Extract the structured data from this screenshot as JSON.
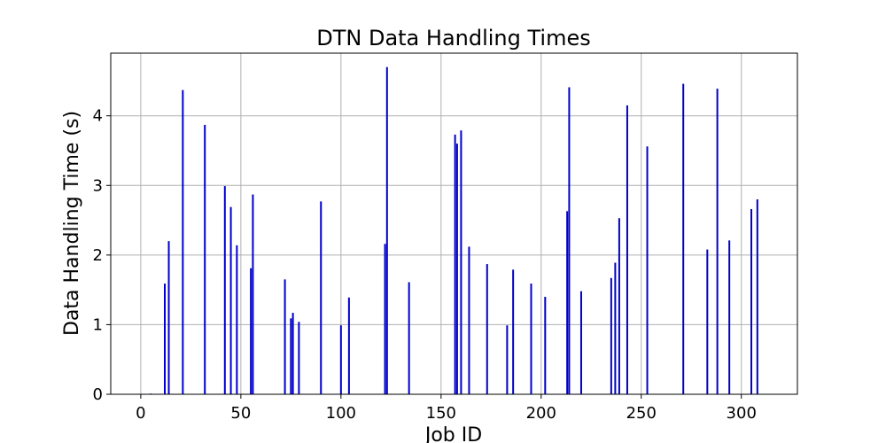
{
  "chart_data": {
    "type": "bar",
    "title": "DTN Data Handling Times",
    "xlabel": "Job ID",
    "ylabel": "Data Handling Time (s)",
    "xlim": [
      -15,
      328
    ],
    "ylim": [
      0,
      4.9
    ],
    "xticks": [
      0,
      50,
      100,
      150,
      200,
      250,
      300
    ],
    "yticks": [
      0,
      1,
      2,
      3,
      4
    ],
    "grid": true,
    "bar_color": "#0000cc",
    "x": [
      5,
      12,
      14,
      21,
      32,
      42,
      45,
      48,
      55,
      56,
      72,
      75,
      76,
      79,
      90,
      100,
      104,
      122,
      123,
      134,
      157,
      158,
      160,
      164,
      173,
      183,
      186,
      195,
      202,
      213,
      214,
      220,
      235,
      237,
      239,
      243,
      253,
      271,
      283,
      288,
      294,
      305,
      308
    ],
    "values": [
      0.01,
      1.59,
      2.2,
      4.37,
      3.87,
      2.99,
      2.69,
      2.14,
      1.81,
      2.87,
      1.65,
      1.09,
      1.17,
      1.04,
      2.77,
      0.99,
      1.39,
      2.16,
      4.7,
      1.61,
      3.73,
      3.6,
      3.79,
      2.12,
      1.87,
      0.99,
      1.79,
      1.59,
      1.4,
      2.63,
      4.41,
      1.48,
      1.67,
      1.89,
      2.53,
      4.15,
      3.56,
      4.46,
      2.08,
      4.39,
      2.21,
      2.66,
      2.8
    ]
  }
}
